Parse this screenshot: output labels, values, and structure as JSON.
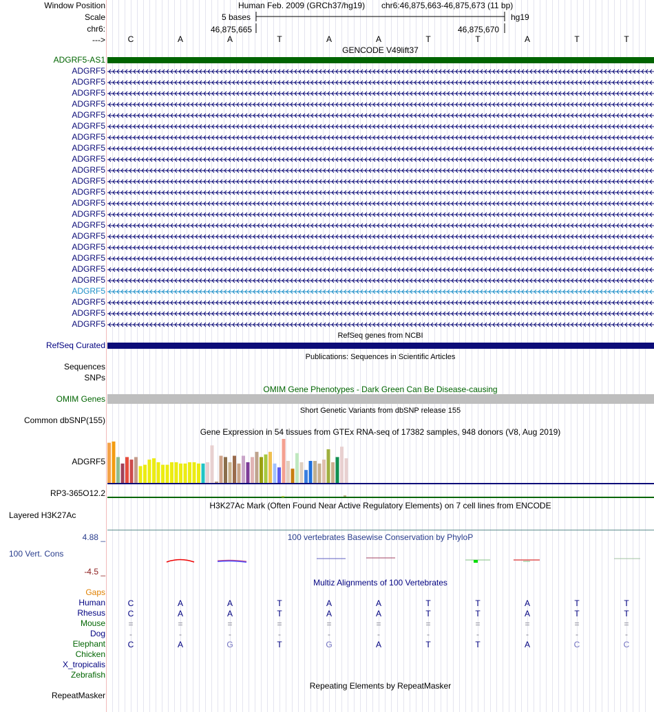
{
  "header": {
    "window_position_label": "Window Position",
    "scale_label": "Scale",
    "chrom_label": "chr6:",
    "strand_label": "--->",
    "assembly": "Human Feb. 2009 (GRCh37/hg19)",
    "position": "chr6:46,875,663-46,875,673 (11 bp)",
    "scale_text": "5 bases",
    "scale_db": "hg19",
    "coord_left": "46,875,665",
    "coord_right": "46,875,670"
  },
  "bases": [
    "C",
    "A",
    "A",
    "T",
    "A",
    "A",
    "T",
    "T",
    "A",
    "T",
    "T"
  ],
  "gencode": {
    "title": "GENCODE V49lift37",
    "as1_label": "ADGRF5-AS1",
    "transcript_labels": [
      "ADGRF5",
      "ADGRF5",
      "ADGRF5",
      "ADGRF5",
      "ADGRF5",
      "ADGRF5",
      "ADGRF5",
      "ADGRF5",
      "ADGRF5",
      "ADGRF5",
      "ADGRF5",
      "ADGRF5",
      "ADGRF5",
      "ADGRF5",
      "ADGRF5",
      "ADGRF5",
      "ADGRF5",
      "ADGRF5",
      "ADGRF5",
      "ADGRF5",
      "ADGRF5",
      "ADGRF5",
      "ADGRF5",
      "ADGRF5"
    ],
    "highlight_index": 20
  },
  "refseq": {
    "title": "RefSeq genes from NCBI",
    "label": "RefSeq Curated"
  },
  "publications": {
    "title": "Publications: Sequences in Scientific Articles",
    "label1": "Sequences",
    "label2": "SNPs"
  },
  "omim": {
    "title": "OMIM Gene Phenotypes - Dark Green Can Be Disease-causing",
    "label": "OMIM Genes"
  },
  "dbsnp": {
    "title": "Short Genetic Variants from dbSNP release 155",
    "label": "Common dbSNP(155)"
  },
  "gtex": {
    "title": "Gene Expression in 54 tissues from GTEx RNA-seq of 17382 samples, 948 donors (V8, Aug 2019)",
    "label": "ADGRF5",
    "label2": "RP3-365O12.2",
    "values": [
      31,
      32,
      20,
      15,
      20,
      18,
      20,
      13,
      14,
      18,
      19,
      16,
      14,
      14,
      16,
      16,
      15,
      15,
      16,
      16,
      15,
      15,
      16,
      29,
      1,
      21,
      20,
      16,
      21,
      15,
      21,
      16,
      20,
      24,
      20,
      22,
      24,
      15,
      12,
      34,
      17,
      11,
      23,
      16,
      10,
      17,
      17,
      15,
      18,
      26,
      16,
      20,
      28,
      19
    ],
    "colors": [
      "#f4a24a",
      "#f39c12",
      "#8fbc8f",
      "#a0425a",
      "#e74c3c",
      "#cc4c4c",
      "#c39c8c",
      "#ecec12",
      "#ecec12",
      "#ecec12",
      "#ecec12",
      "#ecec12",
      "#ecec12",
      "#ecec12",
      "#ecec12",
      "#ecec12",
      "#ecec12",
      "#ecec12",
      "#ecec12",
      "#ecec12",
      "#ecec12",
      "#21c4c4",
      "#e8d0d0",
      "#e8d0d0",
      "#b4967b",
      "#cfa38a",
      "#8a6e4b",
      "#c9b28b",
      "#9a6b4c",
      "#c9a58a",
      "#c9a5c9",
      "#7d3c98",
      "#e0b4b4",
      "#bfa38b",
      "#9aa010",
      "#a9c93f",
      "#f0c050",
      "#a0c0ff",
      "#5a5aee",
      "#f4a090",
      "#e4d0c0",
      "#c87e10",
      "#c0e8c0",
      "#e0d0c0",
      "#3a7fe0",
      "#1e6fdc",
      "#c0b090",
      "#c8b090",
      "#e0c0b0",
      "#a0b040",
      "#ccb090",
      "#109050",
      "#e8d0d0",
      "#e8d0d0"
    ],
    "max_value": 34
  },
  "h3k27ac": {
    "title": "H3K27Ac Mark (Often Found Near Active Regulatory Elements) on 7 cell lines from ENCODE",
    "label": "Layered H3K27Ac"
  },
  "phylop": {
    "title": "100 vertebrates Basewise Conservation by PhyloP",
    "label": "100 Vert. Cons",
    "max": "4.88 _",
    "min": "-4.5 _"
  },
  "multiz": {
    "title": "Multiz Alignments of 100 Vertebrates",
    "gaps_label": "Gaps",
    "species": [
      {
        "name": "Human",
        "color": "#000080",
        "seq": [
          "C",
          "A",
          "A",
          "T",
          "A",
          "A",
          "T",
          "T",
          "A",
          "T",
          "T"
        ]
      },
      {
        "name": "Rhesus",
        "color": "#000080",
        "seq": [
          "C",
          "A",
          "A",
          "T",
          "A",
          "A",
          "T",
          "T",
          "A",
          "T",
          "T"
        ]
      },
      {
        "name": "Mouse",
        "color": "#006400",
        "seq": [
          "=",
          "=",
          "=",
          "=",
          "=",
          "=",
          "=",
          "=",
          "=",
          "=",
          "="
        ]
      },
      {
        "name": "Dog",
        "color": "#000080",
        "seq": [
          "-",
          "-",
          "-",
          "-",
          "-",
          "-",
          "-",
          "-",
          "-",
          "-",
          "-"
        ]
      },
      {
        "name": "Elephant",
        "color": "#006400",
        "seq": [
          "C",
          "A",
          "G",
          "T",
          "G",
          "A",
          "T",
          "T",
          "A",
          "C",
          "C"
        ]
      },
      {
        "name": "Chicken",
        "color": "#006400",
        "seq": []
      },
      {
        "name": "X_tropicalis",
        "color": "#000080",
        "seq": []
      },
      {
        "name": "Zebrafish",
        "color": "#006400",
        "seq": []
      }
    ]
  },
  "repeatmasker": {
    "title": "Repeating Elements by RepeatMasker",
    "label": "RepeatMasker"
  }
}
